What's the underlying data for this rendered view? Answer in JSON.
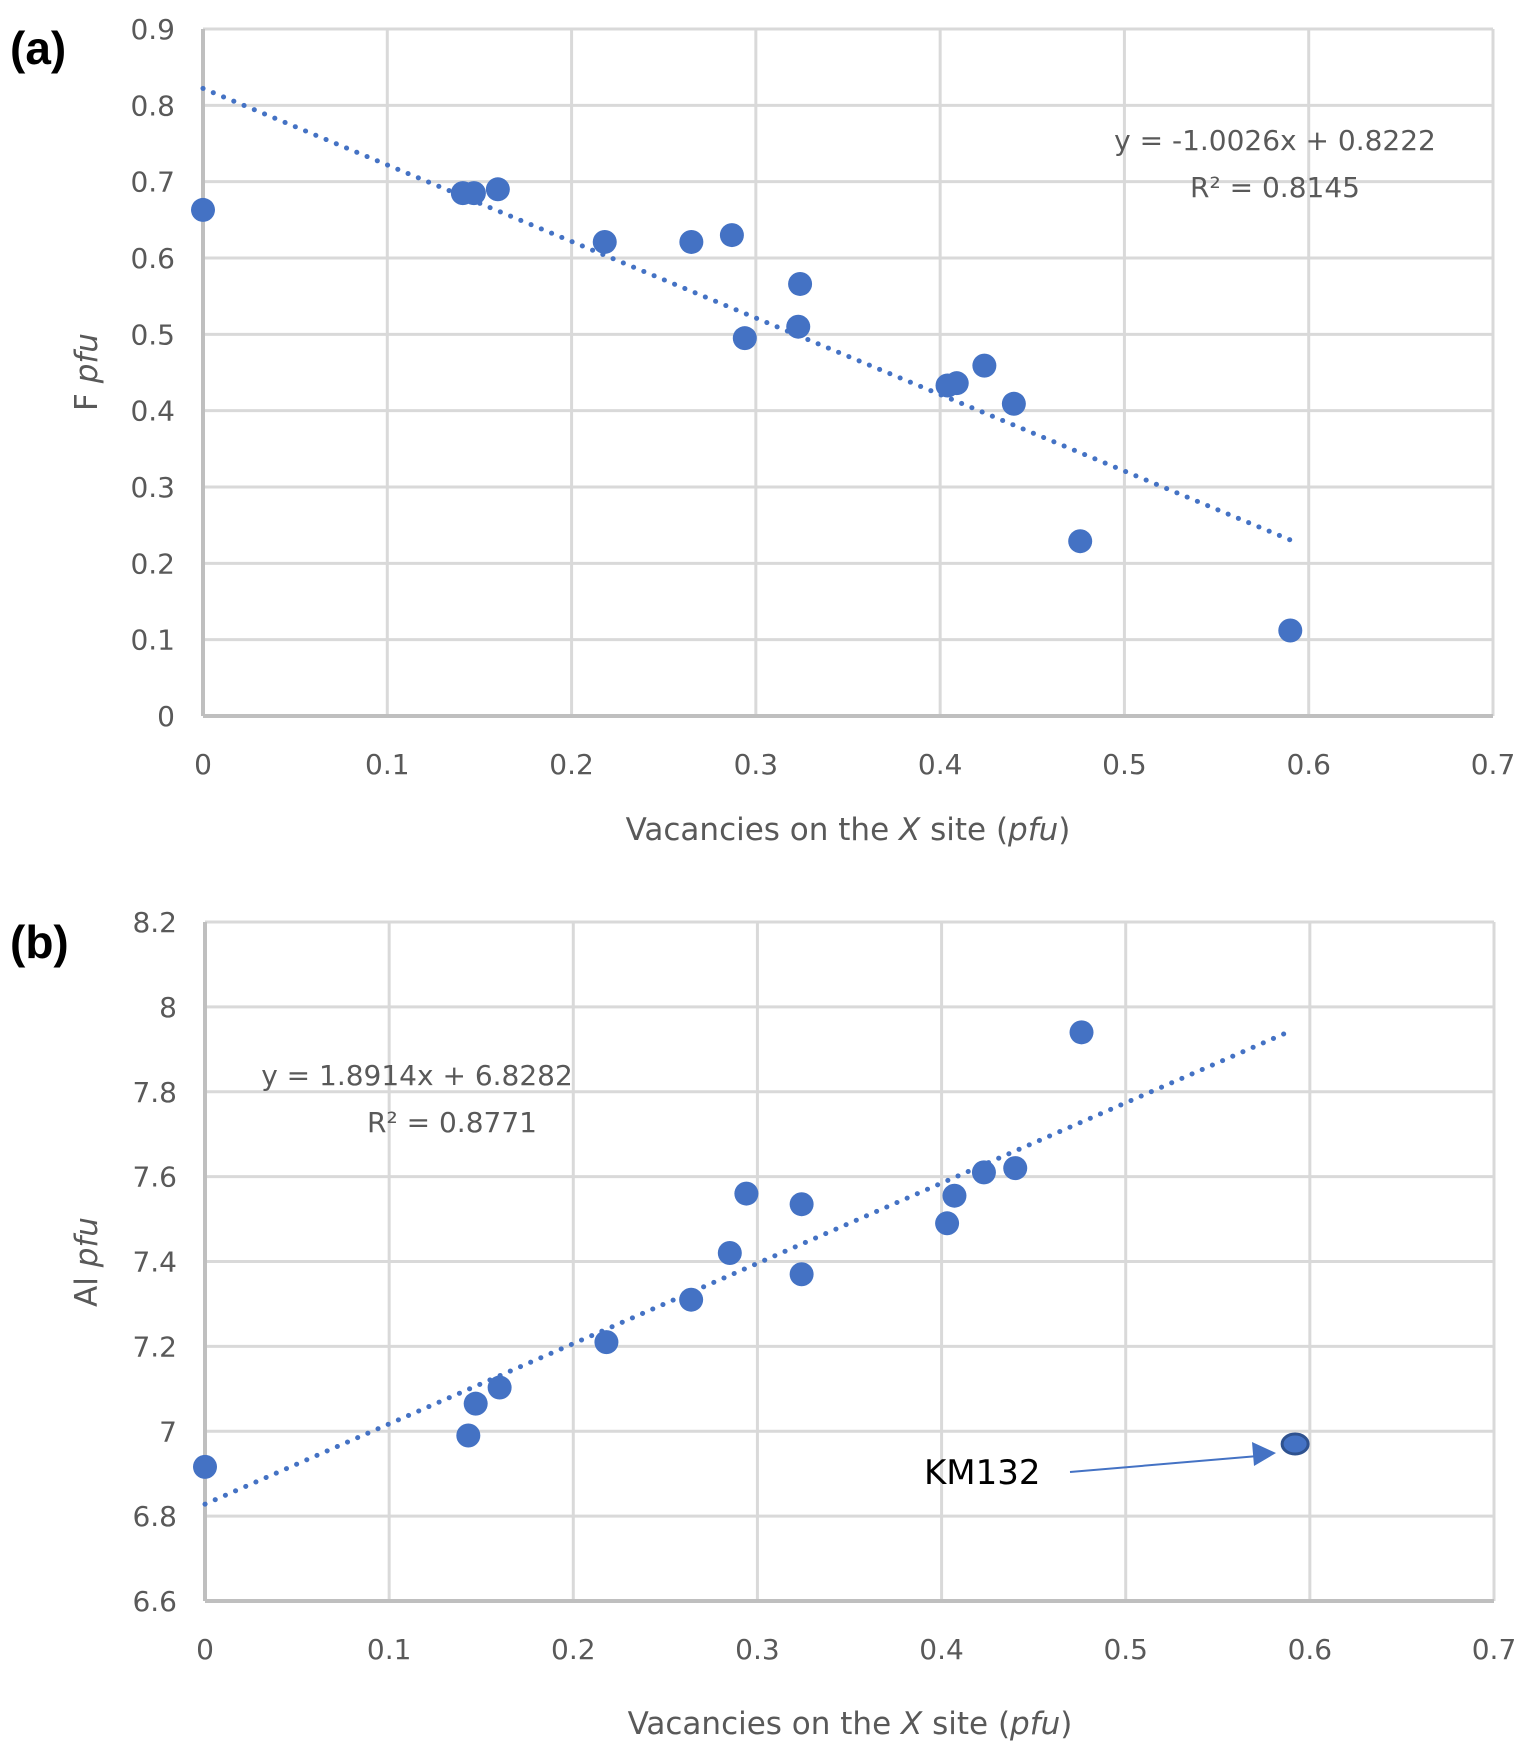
{
  "chart_data": [
    {
      "type": "scatter",
      "panel_label": "(a)",
      "title": "",
      "xlabel": "Vacancies on the X site (pfu)",
      "xlabel_parts": [
        "Vacancies on the ",
        "X",
        " site (",
        "pfu",
        ")"
      ],
      "ylabel": "F pfu",
      "ylabel_parts": [
        "F ",
        "pfu"
      ],
      "xlim": [
        0,
        0.7
      ],
      "ylim": [
        0,
        0.9
      ],
      "x_ticks": [
        "0",
        "0.1",
        "0.2",
        "0.3",
        "0.4",
        "0.5",
        "0.6",
        "0.7"
      ],
      "y_ticks": [
        "0",
        "0.1",
        "0.2",
        "0.3",
        "0.4",
        "0.5",
        "0.6",
        "0.7",
        "0.8",
        "0.9"
      ],
      "grid": true,
      "color": "#4472c4",
      "points": [
        {
          "x": 0.0,
          "y": 0.663
        },
        {
          "x": 0.141,
          "y": 0.685
        },
        {
          "x": 0.147,
          "y": 0.685
        },
        {
          "x": 0.16,
          "y": 0.69
        },
        {
          "x": 0.218,
          "y": 0.621
        },
        {
          "x": 0.265,
          "y": 0.621
        },
        {
          "x": 0.287,
          "y": 0.63
        },
        {
          "x": 0.294,
          "y": 0.495
        },
        {
          "x": 0.324,
          "y": 0.566
        },
        {
          "x": 0.323,
          "y": 0.51
        },
        {
          "x": 0.404,
          "y": 0.433
        },
        {
          "x": 0.409,
          "y": 0.436
        },
        {
          "x": 0.424,
          "y": 0.459
        },
        {
          "x": 0.44,
          "y": 0.409
        },
        {
          "x": 0.476,
          "y": 0.229
        },
        {
          "x": 0.59,
          "y": 0.112
        }
      ],
      "trendline": {
        "slope": -1.0026,
        "intercept": 0.8222,
        "x_range": [
          0,
          0.59
        ],
        "style": "dotted"
      },
      "equation": "y = -1.0026x + 0.8222",
      "r_squared": "R² = 0.8145",
      "equation_placement": "top-right"
    },
    {
      "type": "scatter",
      "panel_label": "(b)",
      "title": "",
      "xlabel": "Vacancies on the X site (pfu)",
      "xlabel_parts": [
        "Vacancies on the ",
        "X",
        " site (",
        "pfu",
        ")"
      ],
      "ylabel": "Al pfu",
      "ylabel_parts": [
        "Al ",
        "pfu"
      ],
      "xlim": [
        0,
        0.7
      ],
      "ylim": [
        6.6,
        8.2
      ],
      "x_ticks": [
        "0",
        "0.1",
        "0.2",
        "0.3",
        "0.4",
        "0.5",
        "0.6",
        "0.7"
      ],
      "y_ticks": [
        "6.6",
        "6.8",
        "7",
        "7.2",
        "7.4",
        "7.6",
        "7.8",
        "8",
        "8.2"
      ],
      "grid": true,
      "color": "#4472c4",
      "points": [
        {
          "x": 0.0,
          "y": 6.916
        },
        {
          "x": 0.143,
          "y": 6.99
        },
        {
          "x": 0.147,
          "y": 7.065
        },
        {
          "x": 0.16,
          "y": 7.103
        },
        {
          "x": 0.218,
          "y": 7.21
        },
        {
          "x": 0.264,
          "y": 7.31
        },
        {
          "x": 0.285,
          "y": 7.42
        },
        {
          "x": 0.294,
          "y": 7.56
        },
        {
          "x": 0.324,
          "y": 7.37
        },
        {
          "x": 0.324,
          "y": 7.535
        },
        {
          "x": 0.403,
          "y": 7.49
        },
        {
          "x": 0.407,
          "y": 7.555
        },
        {
          "x": 0.423,
          "y": 7.61
        },
        {
          "x": 0.44,
          "y": 7.62
        },
        {
          "x": 0.476,
          "y": 7.94
        },
        {
          "x": 0.592,
          "y": 6.97,
          "label": "KM132",
          "highlighted": true
        }
      ],
      "trendline": {
        "slope": 1.8914,
        "intercept": 6.8282,
        "x_range": [
          0,
          0.59
        ],
        "style": "dotted"
      },
      "equation": "y = 1.8914x + 6.8282",
      "r_squared": "R² = 0.8771",
      "equation_placement": "top-left",
      "annotation": {
        "text": "KM132",
        "target_x": 0.592,
        "target_y": 6.97,
        "arrow": true
      }
    }
  ]
}
